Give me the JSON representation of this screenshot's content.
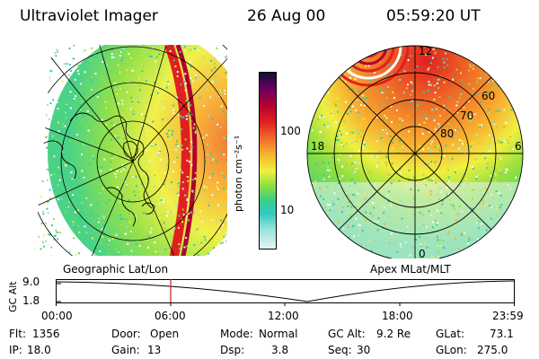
{
  "header": {
    "instrument": "Ultraviolet Imager",
    "date": "26 Aug 00",
    "time": "05:59:20 UT"
  },
  "colorbar": {
    "label": "photon cm⁻²s⁻¹",
    "ticks": [
      "100",
      "10"
    ],
    "colors": [
      "#e8f4f4",
      "#8fe0d8",
      "#30c8c0",
      "#40d080",
      "#90e040",
      "#f0f040",
      "#f8b030",
      "#f07028",
      "#e02020",
      "#b00030",
      "#600060",
      "#101030"
    ]
  },
  "left_panel": {
    "caption": "Geographic Lat/Lon"
  },
  "right_panel": {
    "caption": "Apex MLat/MLT",
    "lat_labels": [
      "60",
      "70",
      "80"
    ],
    "mlt_labels": {
      "top": "12",
      "left": "18",
      "right": "6",
      "bottom": "0"
    }
  },
  "alt_plot": {
    "ylabel": "GC Alt",
    "yticks": [
      "9.0",
      "1.8"
    ],
    "xticks": [
      "00:00",
      "06:00",
      "12:00",
      "18:00",
      "23:59"
    ],
    "marker_time": "06:00",
    "marker_color": "#cc2020"
  },
  "info": {
    "flt_label": "Flt:",
    "flt_value": "1356",
    "ip_label": "IP:",
    "ip_value": "18.0",
    "door_label": "Door:",
    "door_value": "Open",
    "gain_label": "Gain:",
    "gain_value": "13",
    "mode_label": "Mode:",
    "mode_value": "Normal",
    "dsp_label": "Dsp:",
    "dsp_value": "3.8",
    "gcalt_label": "GC Alt:",
    "gcalt_value": "9.2 Re",
    "seq_label": "Seq:",
    "seq_value": "30",
    "glat_label": "GLat:",
    "glat_value": "73.1",
    "glon_label": "GLon:",
    "glon_value": "275.0"
  }
}
